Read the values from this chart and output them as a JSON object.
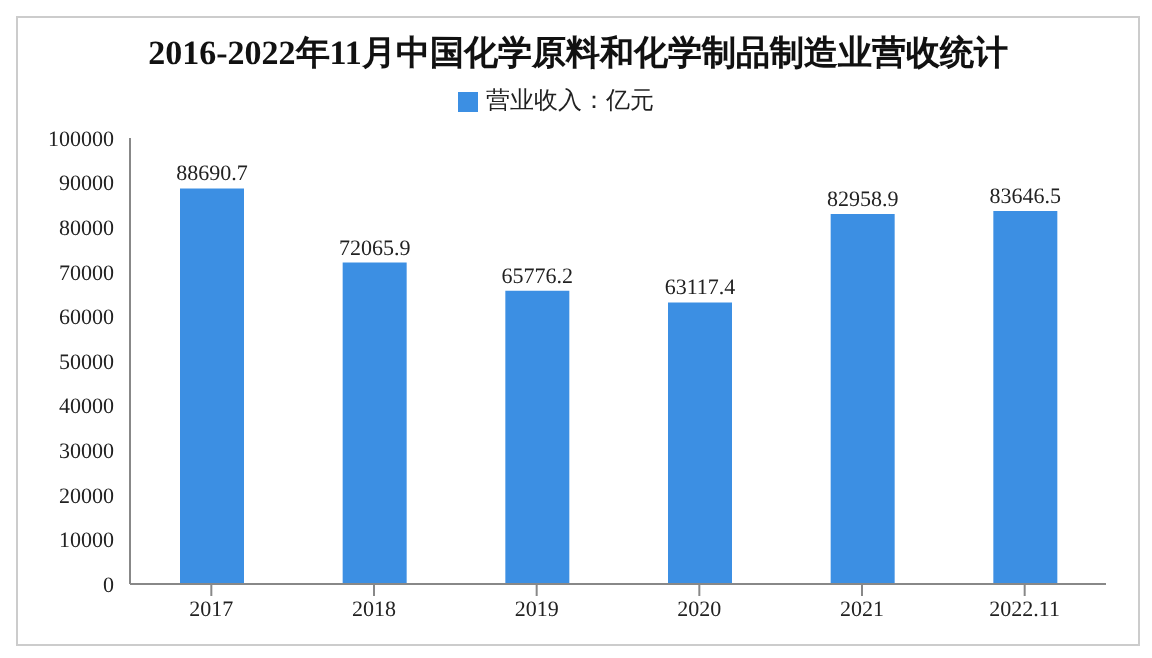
{
  "chart_data": {
    "type": "bar",
    "title": "2016-2022年11月中国化学原料和化学制品制造业营收统计",
    "categories": [
      "2017",
      "2018",
      "2019",
      "2020",
      "2021",
      "2022.11"
    ],
    "series": [
      {
        "name": "营业收入：亿元",
        "color": "#3c8fe3",
        "values": [
          88690.7,
          72065.9,
          65776.2,
          63117.4,
          82958.9,
          83646.5
        ]
      }
    ],
    "ylim": [
      0,
      100000
    ],
    "yticks": [
      0,
      10000,
      20000,
      30000,
      40000,
      50000,
      60000,
      70000,
      80000,
      90000,
      100000
    ],
    "grid": false,
    "legend": "top",
    "data_labels": true
  }
}
